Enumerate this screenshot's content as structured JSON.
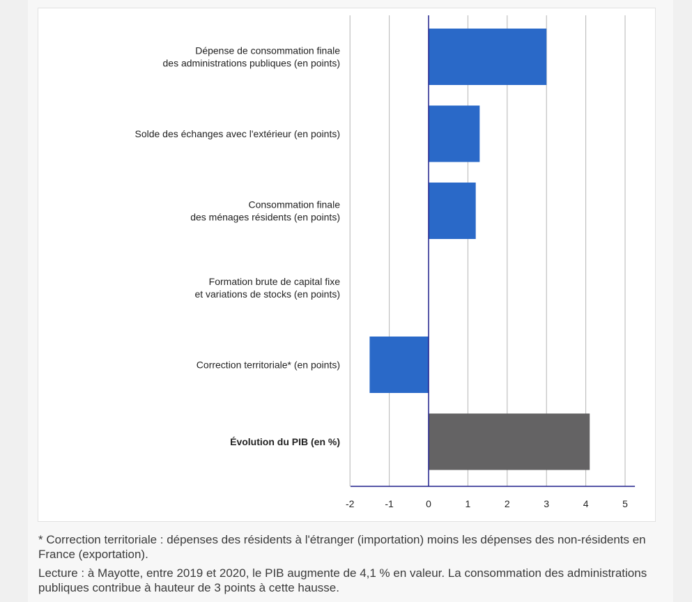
{
  "colors": {
    "positive_bar": "#2a69c8",
    "total_bar": "#646364",
    "axis": "#1f1f8a",
    "grid": "#b4b4b4",
    "label": "#222222"
  },
  "chart_data": {
    "type": "bar",
    "orientation": "horizontal",
    "categories": [
      "Dépense de consommation finale\ndes administrations publiques (en points)",
      "Solde des échanges avec l'extérieur (en points)",
      "Consommation finale\ndes ménages résidents (en points)",
      "Formation brute de capital fixe\net variations de stocks (en points)",
      "Correction territoriale* (en points)",
      "Évolution du PIB (en %)"
    ],
    "values": [
      3.0,
      1.3,
      1.2,
      0.0,
      -1.5,
      4.1
    ],
    "highlight_category": "Évolution du PIB (en %)",
    "xlim": [
      -2,
      5.25
    ],
    "xticks": [
      "-2",
      "-1",
      "0",
      "1",
      "2",
      "3",
      "4",
      "5"
    ],
    "grid": "vertical",
    "legend": "none",
    "title": "",
    "xlabel": "",
    "ylabel": ""
  },
  "notes": {
    "footnote": "* Correction territoriale : dépenses des résidents à l'étranger (importation) moins les dépenses des non-résidents en France (exportation).",
    "reading": "Lecture : à Mayotte, entre 2019 et 2020, le PIB augmente de 4,1 % en valeur. La consommation des administrations publiques contribue à hauteur de 3 points à cette hausse."
  }
}
